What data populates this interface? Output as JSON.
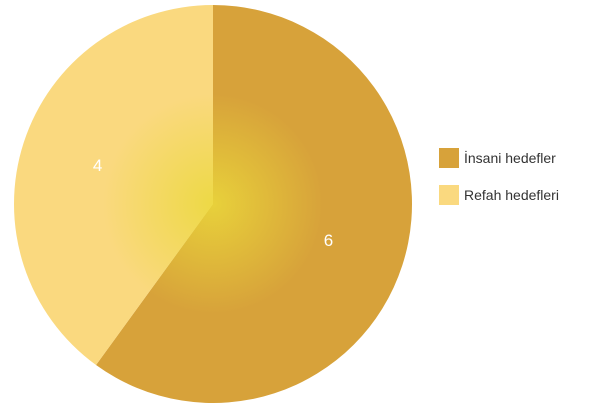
{
  "chart_data": {
    "type": "pie",
    "categories": [
      "İnsani hedefler",
      "Refah hedefleri"
    ],
    "values": [
      6,
      4
    ],
    "data_labels": [
      "6",
      "4"
    ],
    "colors": [
      "#D7A23A",
      "#FAD97F"
    ],
    "center_glow_color": "#EBD93B",
    "legend_placement": "right",
    "start_angle": "top",
    "direction": "clockwise"
  },
  "legend": {
    "items": [
      {
        "label": "İnsani hedefler",
        "color": "#D7A23A"
      },
      {
        "label": "Refah hedefleri",
        "color": "#FAD97F"
      }
    ]
  }
}
